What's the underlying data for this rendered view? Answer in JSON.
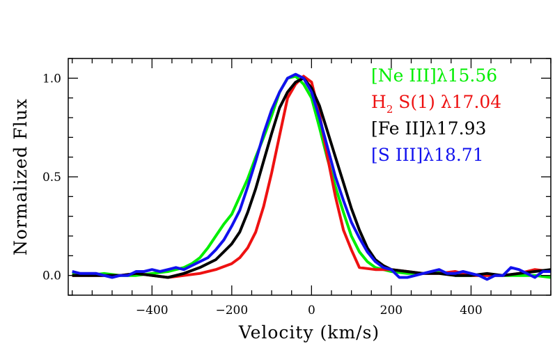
{
  "chart_data": {
    "type": "line",
    "title": "",
    "xlabel": "Velocity (km/s)",
    "ylabel": "Normalized Flux",
    "xlim": [
      -610,
      600
    ],
    "ylim": [
      -0.1,
      1.1
    ],
    "xticks": [
      -400,
      -200,
      0,
      200,
      400
    ],
    "xtick_labels": [
      "−400",
      "−200",
      "0",
      "200",
      "400"
    ],
    "yticks": [
      0.0,
      0.5,
      1.0
    ],
    "ytick_labels": [
      "0.0",
      "0.5",
      "1.0"
    ],
    "grid": false,
    "legend_position": "top-right",
    "series": [
      {
        "name": "[Ne III]λ15.56",
        "label_main": "[Ne III]λ15.56",
        "color": "#00ee00",
        "x": [
          -600,
          -560,
          -520,
          -480,
          -440,
          -400,
          -360,
          -320,
          -300,
          -280,
          -260,
          -240,
          -220,
          -200,
          -180,
          -160,
          -140,
          -120,
          -100,
          -80,
          -60,
          -40,
          -20,
          0,
          20,
          40,
          60,
          80,
          100,
          120,
          140,
          160,
          180,
          200,
          240,
          280,
          320,
          360,
          400,
          440,
          480,
          520,
          560,
          600
        ],
        "y": [
          0.01,
          0.0,
          0.01,
          0.0,
          0.0,
          0.01,
          0.02,
          0.04,
          0.06,
          0.09,
          0.14,
          0.2,
          0.26,
          0.31,
          0.4,
          0.49,
          0.6,
          0.7,
          0.81,
          0.93,
          1.0,
          1.01,
          0.97,
          0.9,
          0.75,
          0.59,
          0.45,
          0.32,
          0.2,
          0.12,
          0.07,
          0.04,
          0.03,
          0.02,
          0.01,
          0.01,
          0.02,
          0.0,
          0.0,
          0.0,
          0.0,
          0.0,
          0.0,
          -0.01
        ]
      },
      {
        "name": "H2 S(1) λ17.04",
        "label_main": "H",
        "label_sub": "2",
        "label_rest": " S(1) λ17.04",
        "color": "#ee1111",
        "x": [
          -600,
          -560,
          -520,
          -480,
          -440,
          -400,
          -360,
          -320,
          -280,
          -240,
          -200,
          -180,
          -160,
          -140,
          -120,
          -100,
          -80,
          -60,
          -40,
          -20,
          0,
          20,
          40,
          60,
          80,
          100,
          120,
          160,
          200,
          240,
          280,
          320,
          360,
          400,
          440,
          480,
          520,
          560,
          600
        ],
        "y": [
          0.0,
          0.0,
          0.0,
          0.0,
          0.01,
          0.0,
          -0.01,
          0.0,
          0.01,
          0.03,
          0.06,
          0.09,
          0.14,
          0.22,
          0.35,
          0.52,
          0.71,
          0.9,
          0.97,
          1.01,
          0.98,
          0.82,
          0.6,
          0.4,
          0.23,
          0.13,
          0.04,
          0.03,
          0.03,
          0.02,
          0.01,
          0.01,
          0.02,
          0.0,
          0.0,
          0.0,
          0.01,
          0.03,
          0.02
        ]
      },
      {
        "name": "[Fe II]λ17.93",
        "label_main": "[Fe II]λ17.93",
        "color": "#000000",
        "x": [
          -600,
          -560,
          -520,
          -480,
          -440,
          -400,
          -360,
          -320,
          -280,
          -240,
          -220,
          -200,
          -180,
          -160,
          -140,
          -120,
          -100,
          -80,
          -60,
          -40,
          -20,
          0,
          20,
          40,
          60,
          80,
          100,
          120,
          140,
          160,
          180,
          200,
          240,
          280,
          320,
          360,
          400,
          440,
          480,
          520,
          560,
          600
        ],
        "y": [
          0.0,
          0.0,
          0.0,
          0.0,
          0.01,
          0.0,
          -0.01,
          0.01,
          0.04,
          0.08,
          0.12,
          0.16,
          0.22,
          0.32,
          0.44,
          0.58,
          0.72,
          0.85,
          0.93,
          0.98,
          1.0,
          0.95,
          0.86,
          0.73,
          0.6,
          0.47,
          0.34,
          0.23,
          0.14,
          0.08,
          0.05,
          0.03,
          0.02,
          0.01,
          0.01,
          0.0,
          0.0,
          0.01,
          0.0,
          0.01,
          0.02,
          0.03
        ]
      },
      {
        "name": "[S III]λ18.71",
        "label_main": "[S III]λ18.71",
        "color": "#1111ee",
        "x": [
          -600,
          -580,
          -560,
          -540,
          -520,
          -500,
          -480,
          -460,
          -440,
          -420,
          -400,
          -380,
          -360,
          -340,
          -320,
          -300,
          -280,
          -260,
          -240,
          -220,
          -200,
          -180,
          -160,
          -140,
          -120,
          -100,
          -80,
          -60,
          -40,
          -20,
          0,
          20,
          40,
          60,
          80,
          100,
          120,
          140,
          160,
          180,
          200,
          220,
          240,
          260,
          280,
          300,
          320,
          340,
          360,
          380,
          400,
          420,
          440,
          460,
          480,
          500,
          520,
          540,
          560,
          580,
          600
        ],
        "y": [
          0.02,
          0.01,
          0.01,
          0.01,
          0.0,
          -0.01,
          0.0,
          0.0,
          0.02,
          0.02,
          0.03,
          0.02,
          0.03,
          0.04,
          0.03,
          0.05,
          0.07,
          0.09,
          0.13,
          0.18,
          0.25,
          0.33,
          0.45,
          0.58,
          0.72,
          0.84,
          0.93,
          1.0,
          1.02,
          1.0,
          0.93,
          0.8,
          0.65,
          0.5,
          0.38,
          0.27,
          0.19,
          0.12,
          0.07,
          0.04,
          0.03,
          -0.01,
          -0.01,
          0.0,
          0.01,
          0.02,
          0.03,
          0.01,
          0.01,
          0.02,
          0.01,
          0.0,
          -0.02,
          0.0,
          0.0,
          0.04,
          0.03,
          0.01,
          -0.01,
          0.02,
          0.02
        ]
      }
    ]
  }
}
